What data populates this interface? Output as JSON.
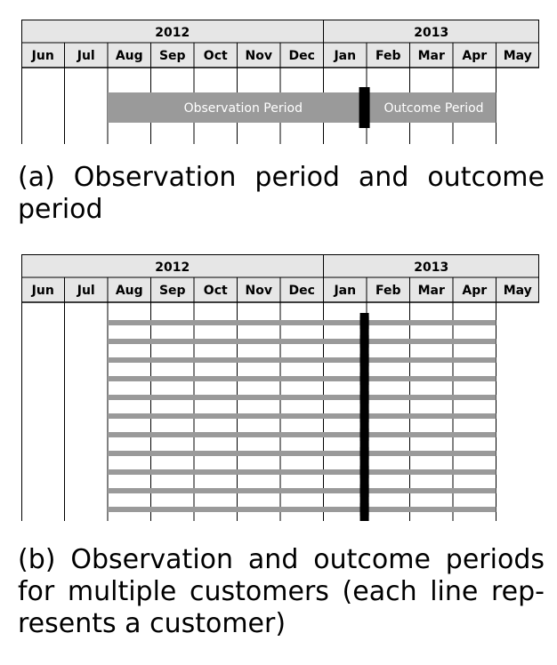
{
  "years": [
    "2012",
    "2013"
  ],
  "months": [
    "Jun",
    "Jul",
    "Aug",
    "Sep",
    "Oct",
    "Nov",
    "Dec",
    "Jan",
    "Feb",
    "Mar",
    "Apr",
    "May"
  ],
  "panel_a": {
    "observation_label": "Observation Period",
    "outcome_label": "Outcome Period",
    "caption_lines": [
      "(a) Observation period and outcome",
      "period"
    ]
  },
  "panel_b": {
    "customer_count": 12,
    "caption_lines": [
      "(b) Observation and outcome periods",
      "for multiple customers (each line rep-",
      "resents a customer)"
    ]
  },
  "colors": {
    "bar": "#9a9a9a",
    "header": "#e6e6e6",
    "cutoff": "#000000",
    "grid": "#000000"
  }
}
